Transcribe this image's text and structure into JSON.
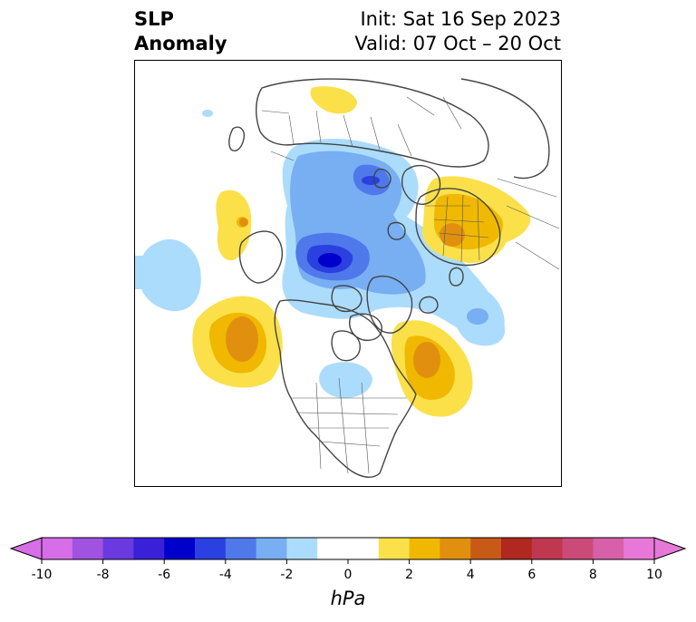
{
  "title": {
    "left_line1": "SLP",
    "left_line2": "Anomaly",
    "right_line1": "Init: Sat 16 Sep 2023",
    "right_line2": "Valid: 07 Oct – 20 Oct"
  },
  "map": {
    "projection": "north-polar stereographic",
    "anomaly_features": [
      {
        "name": "negative-center-arctic",
        "sign": "negative",
        "max_magnitude_hPa": 6
      },
      {
        "name": "negative-center-siberia",
        "sign": "negative",
        "max_magnitude_hPa": 5
      },
      {
        "name": "negative-center-north-pacific",
        "sign": "negative",
        "max_magnitude_hPa": 2
      },
      {
        "name": "negative-center-canada",
        "sign": "negative",
        "max_magnitude_hPa": 2
      },
      {
        "name": "negative-center-north-atlantic",
        "sign": "negative",
        "max_magnitude_hPa": 3
      },
      {
        "name": "positive-center-gulf-of-alaska",
        "sign": "positive",
        "max_magnitude_hPa": 4
      },
      {
        "name": "positive-center-western-atlantic",
        "sign": "positive",
        "max_magnitude_hPa": 4
      },
      {
        "name": "positive-center-europe",
        "sign": "positive",
        "max_magnitude_hPa": 4
      },
      {
        "name": "positive-center-bering",
        "sign": "positive",
        "max_magnitude_hPa": 3
      },
      {
        "name": "positive-center-central-siberia",
        "sign": "positive",
        "max_magnitude_hPa": 2
      }
    ]
  },
  "colorbar": {
    "unit": "hPa",
    "levels": [
      -10,
      -9,
      -8,
      -7,
      -6,
      -5,
      -4,
      -3,
      -2,
      -1,
      1,
      2,
      3,
      4,
      5,
      6,
      7,
      8,
      9,
      10
    ],
    "ticks": [
      "-10",
      "-8",
      "-6",
      "-4",
      "-2",
      "0",
      "2",
      "4",
      "6",
      "8",
      "10"
    ],
    "colors": [
      "#d66ee8",
      "#a052e0",
      "#6a3ae0",
      "#3a20d8",
      "#0000cc",
      "#2a40e0",
      "#4f78ea",
      "#78aef2",
      "#acdcfc",
      "#ffffff",
      "#fbe04a",
      "#f0b800",
      "#e0900e",
      "#c85a18",
      "#b02820",
      "#c03850",
      "#cc4a78",
      "#d860a8",
      "#e878d8"
    ],
    "extend_low_color": "#d66ee8",
    "extend_high_color": "#e878d8"
  }
}
